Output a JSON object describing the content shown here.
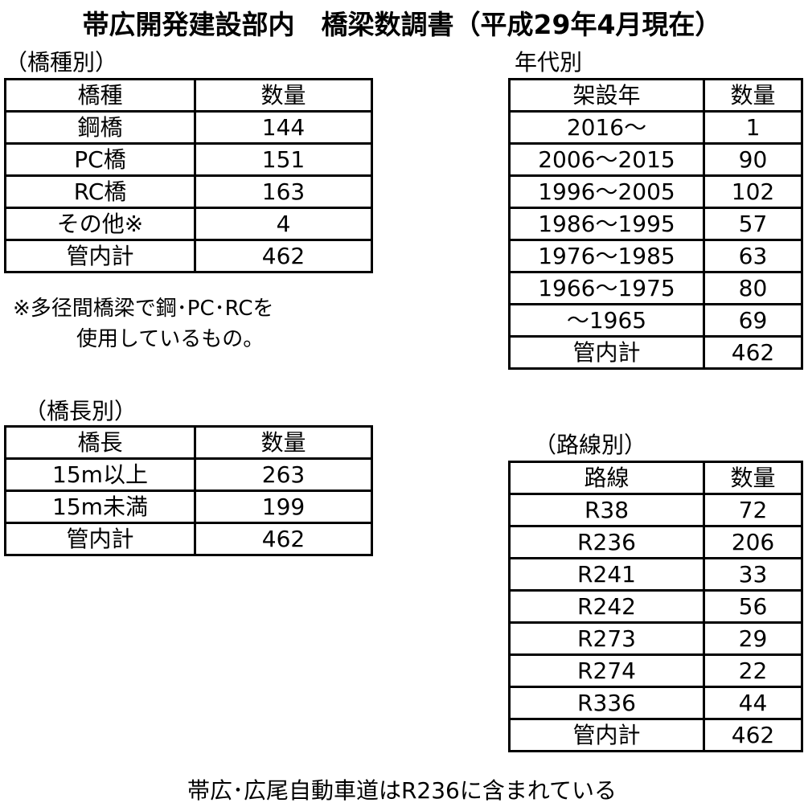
{
  "title": "帯広開発建設部内　橋梁数調書（平成29年4月現在）",
  "by_type": {
    "label": "（橋種別）",
    "headers": [
      "橋種",
      "数量"
    ],
    "rows": [
      [
        "鋼橋",
        "144"
      ],
      [
        "PC橋",
        "151"
      ],
      [
        "RC橋",
        "163"
      ],
      [
        "その他※",
        "4"
      ],
      [
        "管内計",
        "462"
      ]
    ],
    "note_line1": "※多径間橋梁で鋼･PC･RCを",
    "note_line2": "使用しているもの。"
  },
  "by_length": {
    "label": "（橋長別）",
    "headers": [
      "橋長",
      "数量"
    ],
    "rows": [
      [
        "15m以上",
        "263"
      ],
      [
        "15m未満",
        "199"
      ],
      [
        "管内計",
        "462"
      ]
    ]
  },
  "by_era": {
    "label": "年代別",
    "headers": [
      "架設年",
      "数量"
    ],
    "rows": [
      [
        "2016～",
        "1"
      ],
      [
        "2006～2015",
        "90"
      ],
      [
        "1996～2005",
        "102"
      ],
      [
        "1986～1995",
        "57"
      ],
      [
        "1976～1985",
        "63"
      ],
      [
        "1966～1975",
        "80"
      ],
      [
        "～1965",
        "69"
      ],
      [
        "管内計",
        "462"
      ]
    ]
  },
  "by_route": {
    "label": "（路線別）",
    "headers": [
      "路線",
      "数量"
    ],
    "rows": [
      [
        "R38",
        "72"
      ],
      [
        "R236",
        "206"
      ],
      [
        "R241",
        "33"
      ],
      [
        "R242",
        "56"
      ],
      [
        "R273",
        "29"
      ],
      [
        "R274",
        "22"
      ],
      [
        "R336",
        "44"
      ],
      [
        "管内計",
        "462"
      ]
    ]
  },
  "footer": "帯広･広尾自動車道はR236に含まれている"
}
